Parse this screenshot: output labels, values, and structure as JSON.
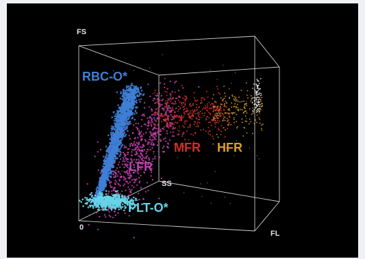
{
  "chart_data": {
    "type": "scatter",
    "dimensions": "3d",
    "title": "",
    "axes": {
      "x": {
        "label": "FL"
      },
      "y": {
        "label": "FS"
      },
      "z": {
        "label": "SS"
      },
      "origin_label": "0"
    },
    "grid": false,
    "legend": "none",
    "background": "#000000",
    "axis_color": "#cfcfcf",
    "clusters": [
      {
        "label": "RBC-O*",
        "color": "#3f7fd6",
        "density": "high"
      },
      {
        "label": "LFR",
        "color": "#c33fb0",
        "density": "medium"
      },
      {
        "label": "MFR",
        "color": "#d2302b",
        "density": "low"
      },
      {
        "label": "HFR",
        "color": "#d9a02a",
        "density": "low"
      },
      {
        "label": "PLT-O*",
        "color": "#66d4e8",
        "density": "high"
      }
    ]
  }
}
